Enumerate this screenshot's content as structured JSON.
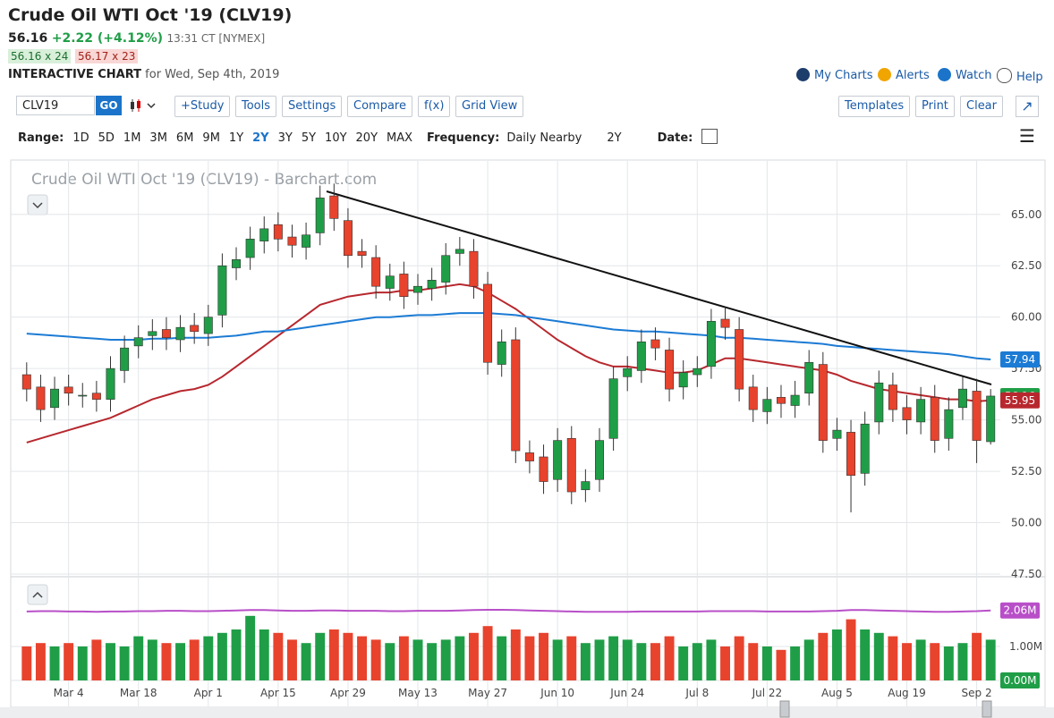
{
  "header": {
    "title": "Crude Oil WTI Oct '19 (CLV19)",
    "last": "56.16",
    "change": "+2.22 (+4.12%)",
    "time": "13:31 CT [NYMEX]",
    "bid": "56.16 x 24",
    "ask": "56.17 x 23",
    "chart_label": "INTERACTIVE CHART",
    "chart_date": "for Wed, Sep 4th, 2019",
    "links": [
      "My Charts",
      "Alerts",
      "Watch",
      "Help"
    ]
  },
  "toolbar": {
    "symbol": "CLV19",
    "go": "GO",
    "left_buttons": [
      "+Study",
      "Tools",
      "Settings",
      "Compare",
      "f(x)",
      "Grid View"
    ],
    "right_buttons": [
      "Templates",
      "Print",
      "Clear"
    ]
  },
  "range_bar": {
    "range_label": "Range:",
    "ranges": [
      "1D",
      "5D",
      "1M",
      "3M",
      "6M",
      "9M",
      "1Y",
      "2Y",
      "3Y",
      "5Y",
      "10Y",
      "20Y",
      "MAX"
    ],
    "active_range": "2Y",
    "frequency_label": "Frequency:",
    "frequency": "Daily Nearby",
    "period": "2Y",
    "date_label": "Date:"
  },
  "chart_data": {
    "type": "candlestick",
    "title": "Crude Oil WTI Oct '19 (CLV19) - Barchart.com",
    "categories": [
      null,
      null,
      null,
      "Mar 4",
      null,
      null,
      null,
      null,
      "Mar 18",
      null,
      null,
      null,
      null,
      "Apr 1",
      null,
      null,
      null,
      null,
      "Apr 15",
      null,
      null,
      null,
      null,
      "Apr 29",
      null,
      null,
      null,
      null,
      "May 13",
      null,
      null,
      null,
      null,
      "May 27",
      null,
      null,
      null,
      null,
      "Jun 10",
      null,
      null,
      null,
      null,
      "Jun 24",
      null,
      null,
      null,
      null,
      "Jul 8",
      null,
      null,
      null,
      null,
      "Jul 22",
      null,
      null,
      null,
      null,
      "Aug 5",
      null,
      null,
      null,
      null,
      "Aug 19",
      null,
      null,
      null,
      null,
      "Sep 2",
      null
    ],
    "open": [
      57.2,
      56.6,
      55.6,
      56.6,
      56.2,
      56.3,
      56.0,
      57.4,
      58.6,
      59.1,
      59.4,
      58.9,
      59.6,
      59.2,
      60.1,
      62.4,
      62.9,
      63.7,
      64.5,
      63.9,
      63.4,
      64.1,
      65.9,
      64.7,
      63.2,
      62.9,
      61.4,
      62.1,
      61.2,
      61.4,
      61.7,
      63.1,
      63.2,
      61.6,
      57.7,
      58.9,
      53.4,
      53.2,
      52.1,
      54.1,
      51.6,
      52.1,
      54.1,
      57.1,
      57.4,
      58.9,
      58.4,
      56.6,
      57.2,
      57.6,
      59.9,
      59.4,
      56.6,
      55.4,
      56.1,
      55.7,
      56.3,
      57.7,
      54.1,
      54.4,
      52.4,
      54.9,
      56.7,
      55.6,
      54.9,
      56.1,
      54.1,
      55.6,
      56.4,
      53.94
    ],
    "high": [
      57.8,
      57.2,
      57.1,
      57.2,
      56.8,
      56.9,
      58.1,
      59.1,
      59.6,
      59.9,
      60.0,
      60.1,
      60.2,
      60.6,
      63.1,
      63.4,
      64.4,
      64.9,
      65.1,
      64.5,
      64.6,
      66.4,
      66.5,
      65.3,
      63.8,
      63.5,
      62.6,
      62.7,
      62.1,
      62.4,
      63.6,
      63.9,
      63.8,
      62.2,
      59.4,
      59.5,
      54.0,
      53.8,
      54.6,
      54.7,
      52.6,
      54.6,
      57.6,
      58.1,
      59.4,
      59.5,
      59.0,
      57.9,
      58.1,
      60.4,
      60.5,
      60.0,
      57.2,
      56.6,
      56.7,
      56.9,
      58.4,
      58.3,
      55.1,
      55.0,
      55.4,
      57.4,
      57.3,
      56.2,
      56.6,
      56.7,
      56.1,
      57.1,
      57.0,
      56.5
    ],
    "low": [
      55.9,
      54.9,
      55.0,
      55.7,
      55.6,
      55.4,
      55.4,
      56.8,
      58.0,
      58.4,
      58.4,
      58.3,
      58.7,
      58.6,
      59.5,
      61.8,
      62.3,
      63.1,
      63.2,
      62.9,
      62.8,
      63.5,
      64.2,
      62.4,
      62.4,
      60.9,
      60.8,
      60.4,
      60.6,
      60.8,
      61.1,
      62.5,
      60.9,
      57.2,
      57.1,
      52.9,
      52.4,
      51.4,
      51.5,
      50.9,
      51.0,
      51.5,
      53.5,
      56.4,
      56.8,
      57.9,
      55.9,
      56.0,
      56.6,
      57.0,
      58.9,
      55.9,
      54.9,
      54.8,
      55.1,
      55.1,
      55.7,
      53.4,
      53.5,
      50.5,
      51.8,
      54.3,
      54.9,
      54.3,
      54.3,
      53.4,
      53.5,
      55.0,
      52.9,
      53.8
    ],
    "close": [
      56.5,
      55.5,
      56.5,
      56.3,
      56.2,
      56.0,
      57.5,
      58.5,
      59.0,
      59.3,
      59.0,
      59.5,
      59.3,
      60.0,
      62.5,
      62.8,
      63.8,
      64.3,
      63.8,
      63.5,
      64.0,
      65.8,
      64.8,
      63.0,
      63.0,
      61.5,
      62.0,
      61.0,
      61.5,
      61.8,
      63.0,
      63.3,
      61.5,
      57.8,
      58.8,
      53.5,
      53.0,
      52.0,
      54.0,
      51.5,
      52.0,
      54.0,
      57.0,
      57.5,
      58.8,
      58.5,
      56.5,
      57.3,
      57.5,
      59.8,
      59.5,
      56.5,
      55.5,
      56.0,
      55.8,
      56.2,
      57.8,
      54.0,
      54.5,
      52.3,
      54.8,
      56.8,
      55.5,
      55.0,
      56.0,
      54.0,
      55.5,
      56.5,
      54.0,
      56.16
    ],
    "up_color": "#1f9e47",
    "down_color": "#e8432d",
    "ylim": [
      47.5,
      67.6
    ],
    "yticks": [
      {
        "value": 65,
        "label": "65.00"
      },
      {
        "value": 62.5,
        "label": "62.50"
      },
      {
        "value": 60,
        "label": "60.00"
      },
      {
        "value": 57.5,
        "label": "57.50"
      },
      {
        "value": 55,
        "label": "55.00"
      },
      {
        "value": 52.5,
        "label": "52.50"
      },
      {
        "value": 50,
        "label": "50.00"
      },
      {
        "value": 47.5,
        "label": "47.50"
      }
    ],
    "grid": true,
    "moving_averages": [
      {
        "color": "#b7282e",
        "values": [
          53.9,
          54.1,
          54.3,
          54.5,
          54.7,
          54.9,
          55.1,
          55.4,
          55.7,
          56.0,
          56.2,
          56.4,
          56.5,
          56.7,
          57.1,
          57.6,
          58.1,
          58.6,
          59.1,
          59.6,
          60.1,
          60.6,
          60.8,
          61.0,
          61.1,
          61.2,
          61.2,
          61.3,
          61.3,
          61.4,
          61.5,
          61.6,
          61.5,
          61.2,
          60.8,
          60.4,
          59.9,
          59.4,
          58.9,
          58.5,
          58.1,
          57.8,
          57.6,
          57.6,
          57.5,
          57.4,
          57.3,
          57.3,
          57.4,
          57.7,
          58.0,
          58.0,
          57.9,
          57.8,
          57.7,
          57.6,
          57.5,
          57.4,
          57.2,
          56.9,
          56.7,
          56.5,
          56.4,
          56.3,
          56.2,
          56.1,
          56.0,
          56.0,
          55.9,
          55.95
        ]
      },
      {
        "color": "#1c7bd4",
        "values": [
          59.2,
          59.15,
          59.1,
          59.05,
          59.0,
          58.95,
          58.9,
          58.9,
          58.9,
          58.95,
          58.95,
          59.0,
          59.0,
          59.0,
          59.05,
          59.1,
          59.2,
          59.3,
          59.3,
          59.4,
          59.5,
          59.6,
          59.7,
          59.8,
          59.9,
          60.0,
          60.0,
          60.05,
          60.1,
          60.1,
          60.15,
          60.2,
          60.2,
          60.2,
          60.15,
          60.1,
          60.0,
          59.9,
          59.8,
          59.7,
          59.6,
          59.5,
          59.4,
          59.35,
          59.3,
          59.3,
          59.25,
          59.2,
          59.15,
          59.1,
          59.0,
          59.0,
          58.95,
          58.9,
          58.85,
          58.8,
          58.75,
          58.7,
          58.6,
          58.55,
          58.5,
          58.45,
          58.4,
          58.35,
          58.3,
          58.25,
          58.2,
          58.1,
          58.0,
          57.94
        ]
      }
    ],
    "volume": {
      "values": [
        1.0,
        1.1,
        1.0,
        1.1,
        1.0,
        1.2,
        1.1,
        1.0,
        1.3,
        1.2,
        1.1,
        1.1,
        1.2,
        1.3,
        1.4,
        1.5,
        1.9,
        1.5,
        1.4,
        1.2,
        1.1,
        1.4,
        1.5,
        1.4,
        1.3,
        1.2,
        1.1,
        1.3,
        1.2,
        1.1,
        1.2,
        1.3,
        1.4,
        1.6,
        1.3,
        1.5,
        1.3,
        1.4,
        1.2,
        1.3,
        1.1,
        1.2,
        1.3,
        1.2,
        1.1,
        1.1,
        1.3,
        1.0,
        1.1,
        1.2,
        1.0,
        1.3,
        1.1,
        1.0,
        0.9,
        1.0,
        1.2,
        1.4,
        1.5,
        1.8,
        1.5,
        1.4,
        1.3,
        1.1,
        1.2,
        1.1,
        1.0,
        1.1,
        1.4,
        1.2
      ],
      "ylim": [
        0,
        3
      ],
      "yticks": [
        {
          "value": 1,
          "label": "1.00M"
        },
        {
          "value": 0,
          "label": "0.00M"
        }
      ],
      "average": {
        "color": "#b84fc8",
        "values": [
          2.03,
          2.04,
          2.04,
          2.03,
          2.03,
          2.02,
          2.03,
          2.03,
          2.04,
          2.04,
          2.05,
          2.05,
          2.04,
          2.04,
          2.05,
          2.06,
          2.07,
          2.07,
          2.06,
          2.05,
          2.05,
          2.06,
          2.06,
          2.05,
          2.05,
          2.05,
          2.04,
          2.04,
          2.05,
          2.05,
          2.05,
          2.06,
          2.07,
          2.08,
          2.08,
          2.07,
          2.06,
          2.05,
          2.04,
          2.03,
          2.02,
          2.02,
          2.02,
          2.02,
          2.03,
          2.03,
          2.03,
          2.03,
          2.03,
          2.04,
          2.04,
          2.04,
          2.04,
          2.03,
          2.03,
          2.03,
          2.03,
          2.04,
          2.05,
          2.07,
          2.07,
          2.06,
          2.05,
          2.04,
          2.03,
          2.02,
          2.02,
          2.03,
          2.04,
          2.06
        ],
        "label": "2.06M"
      }
    }
  }
}
